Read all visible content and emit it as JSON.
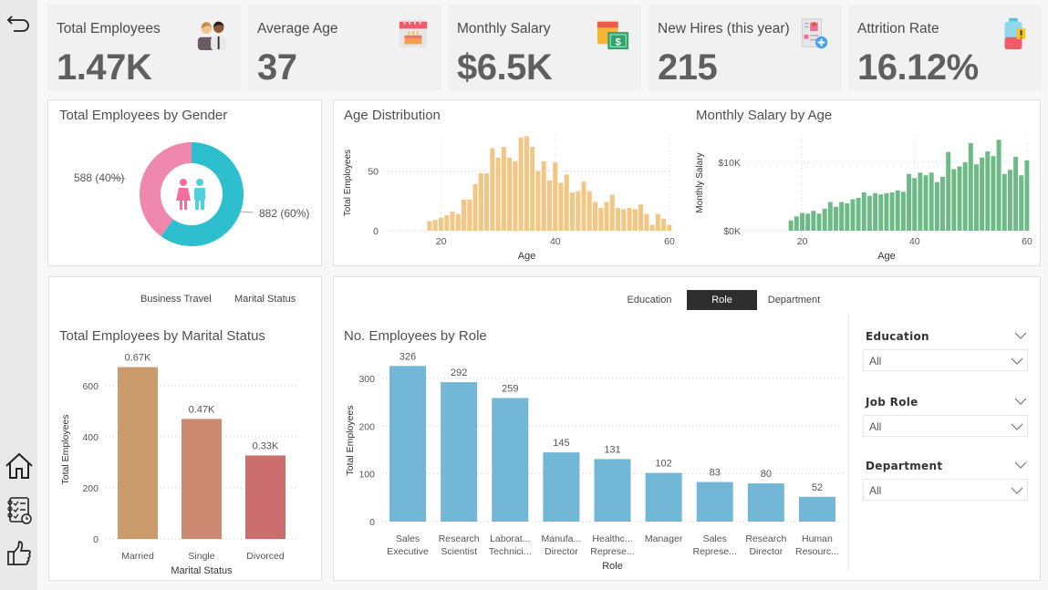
{
  "sidebar": {
    "items": [
      {
        "name": "back",
        "icon": "back-arrow-icon"
      },
      {
        "name": "home",
        "icon": "home-icon"
      },
      {
        "name": "checklist",
        "icon": "checklist-icon"
      },
      {
        "name": "feedback",
        "icon": "thumbs-up-icon"
      }
    ]
  },
  "kpis": [
    {
      "label": "Total Employees",
      "value": "1.47K",
      "icon": "employees-icon"
    },
    {
      "label": "Average Age",
      "value": "37",
      "icon": "birthday-cake-calendar-icon"
    },
    {
      "label": "Monthly Salary",
      "value": "$6.5K",
      "icon": "salary-calendar-icon"
    },
    {
      "label": "New Hires (this year)",
      "value": "215",
      "icon": "new-hire-document-icon"
    },
    {
      "label": "Attrition Rate",
      "value": "16.12%",
      "icon": "battery-warning-icon"
    }
  ],
  "colors": {
    "female": "#f087ac",
    "male": "#2ebfcf",
    "age_bar": "#f3c683",
    "salary_bar": "#6cba85",
    "role_bar": "#72b7d6",
    "married": "#cb9b6c",
    "single": "#cd8a72",
    "divorced": "#cc6e6e"
  },
  "gender_chart": {
    "title": "Total Employees by Gender",
    "female_label": "588 (40%)",
    "male_label": "882 (60%)"
  },
  "age_chart": {
    "title": "Age Distribution",
    "ylabel": "Total Employees",
    "xlabel": "Age",
    "yticks": [
      "0",
      "50"
    ],
    "xticks": [
      "20",
      "40",
      "60"
    ]
  },
  "salary_chart": {
    "title": "Monthly Salary by Age",
    "ylabel": "Monthly Salary",
    "xlabel": "Age",
    "yticks": [
      "$0K",
      "$10K"
    ],
    "xticks": [
      "20",
      "40",
      "60"
    ]
  },
  "marital_panel": {
    "nav": [
      "Business Travel",
      "Marital Status"
    ],
    "title": "Total Employees by Marital Status",
    "ylabel": "Total Employees",
    "xlabel": "Marital Status",
    "yticks": [
      "0",
      "200",
      "400",
      "600"
    ]
  },
  "role_panel": {
    "tabs": [
      {
        "label": "Education",
        "active": false
      },
      {
        "label": "Role",
        "active": true
      },
      {
        "label": "Department",
        "active": false
      }
    ],
    "title": "No. Employees by Role",
    "ylabel": "Total Employees",
    "xlabel": "Role",
    "yticks": [
      "0",
      "100",
      "200",
      "300"
    ]
  },
  "slicers": [
    {
      "title": "Education",
      "value": "All"
    },
    {
      "title": "Job Role",
      "value": "All"
    },
    {
      "title": "Department",
      "value": "All"
    }
  ],
  "chart_data": [
    {
      "type": "pie",
      "title": "Total Employees by Gender",
      "categories": [
        "Female",
        "Male"
      ],
      "values": [
        588,
        882
      ],
      "labels": [
        "588 (40%)",
        "882 (60%)"
      ]
    },
    {
      "type": "bar",
      "title": "Age Distribution",
      "xlabel": "Age",
      "ylabel": "Total Employees",
      "x": [
        18,
        19,
        20,
        21,
        22,
        23,
        24,
        25,
        26,
        27,
        28,
        29,
        30,
        31,
        32,
        33,
        34,
        35,
        36,
        37,
        38,
        39,
        40,
        41,
        42,
        43,
        44,
        45,
        46,
        47,
        48,
        49,
        50,
        51,
        52,
        53,
        54,
        55,
        56,
        57,
        58,
        59,
        60
      ],
      "values": [
        8,
        9,
        11,
        13,
        16,
        14,
        26,
        26,
        39,
        48,
        48,
        69,
        61,
        70,
        61,
        58,
        78,
        79,
        70,
        50,
        58,
        42,
        57,
        40,
        47,
        32,
        33,
        41,
        33,
        24,
        19,
        24,
        30,
        19,
        18,
        19,
        18,
        22,
        14,
        5,
        14,
        10,
        5
      ],
      "xlim": [
        10,
        60
      ],
      "ylim": [
        0,
        80
      ],
      "xticks": [
        20,
        40,
        60
      ],
      "yticks": [
        0,
        50
      ],
      "grid": true
    },
    {
      "type": "bar",
      "title": "Monthly Salary by Age",
      "xlabel": "Age",
      "ylabel": "Monthly Salary",
      "x": [
        18,
        19,
        20,
        21,
        22,
        23,
        24,
        25,
        26,
        27,
        28,
        29,
        30,
        31,
        32,
        33,
        34,
        35,
        36,
        37,
        38,
        39,
        40,
        41,
        42,
        43,
        44,
        45,
        46,
        47,
        48,
        49,
        50,
        51,
        52,
        53,
        54,
        55,
        56,
        57,
        58,
        59,
        60
      ],
      "values": [
        1500,
        2100,
        2600,
        2500,
        2900,
        2500,
        3200,
        4200,
        3500,
        4200,
        4000,
        4600,
        4800,
        5600,
        5100,
        5500,
        5300,
        5500,
        5600,
        5900,
        5700,
        8300,
        7700,
        8500,
        8100,
        8500,
        7100,
        7900,
        11500,
        9000,
        9400,
        10000,
        12800,
        9700,
        10700,
        11600,
        10900,
        13300,
        8300,
        8900,
        10800,
        8100,
        10300
      ],
      "xlim": [
        10,
        60
      ],
      "ylim": [
        0,
        14000
      ],
      "xticks": [
        20,
        40,
        60
      ],
      "yticks": [
        0,
        10000
      ],
      "grid": true
    },
    {
      "type": "bar",
      "title": "Total Employees by Marital Status",
      "xlabel": "Marital Status",
      "ylabel": "Total Employees",
      "categories": [
        "Married",
        "Single",
        "Divorced"
      ],
      "values": [
        673,
        470,
        327
      ],
      "data_labels": [
        "0.67K",
        "0.47K",
        "0.33K"
      ],
      "ylim": [
        0,
        700
      ],
      "yticks": [
        0,
        200,
        400,
        600
      ],
      "grid": true
    },
    {
      "type": "bar",
      "title": "No. Employees by Role",
      "xlabel": "Role",
      "ylabel": "Total Employees",
      "categories": [
        [
          "Sales",
          "Executive"
        ],
        [
          "Research",
          "Scientist"
        ],
        [
          "Laborat...",
          "Technici..."
        ],
        [
          "Manufa...",
          "Director"
        ],
        [
          "Healthc...",
          "Represe..."
        ],
        [
          "Manager"
        ],
        [
          "Sales",
          "Represe..."
        ],
        [
          "Research",
          "Director"
        ],
        [
          "Human",
          "Resourc..."
        ]
      ],
      "values": [
        326,
        292,
        259,
        145,
        131,
        102,
        83,
        80,
        52
      ],
      "ylim": [
        0,
        340
      ],
      "yticks": [
        0,
        100,
        200,
        300
      ],
      "grid": true
    }
  ]
}
